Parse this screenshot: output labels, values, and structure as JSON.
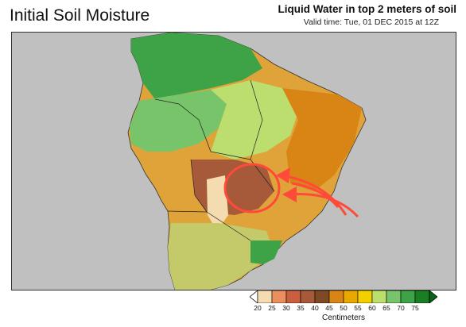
{
  "header": {
    "title": "Initial Soil Moisture",
    "subtitle": "Liquid Water in top 2 meters of soil",
    "valid_time": "Valid time: Tue, 01 DEC 2015 at 12Z"
  },
  "legend": {
    "units": "Centimeters",
    "ticks": [
      "20",
      "25",
      "30",
      "35",
      "40",
      "45",
      "50",
      "55",
      "60",
      "65",
      "70",
      "75"
    ],
    "colors": [
      "#f4dcb0",
      "#e9905e",
      "#c95f3e",
      "#a65a3a",
      "#7e4a25",
      "#d98515",
      "#e8a800",
      "#f2d000",
      "#bcde6e",
      "#78c46a",
      "#3ea346",
      "#1a7f22"
    ]
  },
  "map": {
    "ocean_color": "#c0c0c0",
    "annotation_color": "#ff4a3a"
  }
}
